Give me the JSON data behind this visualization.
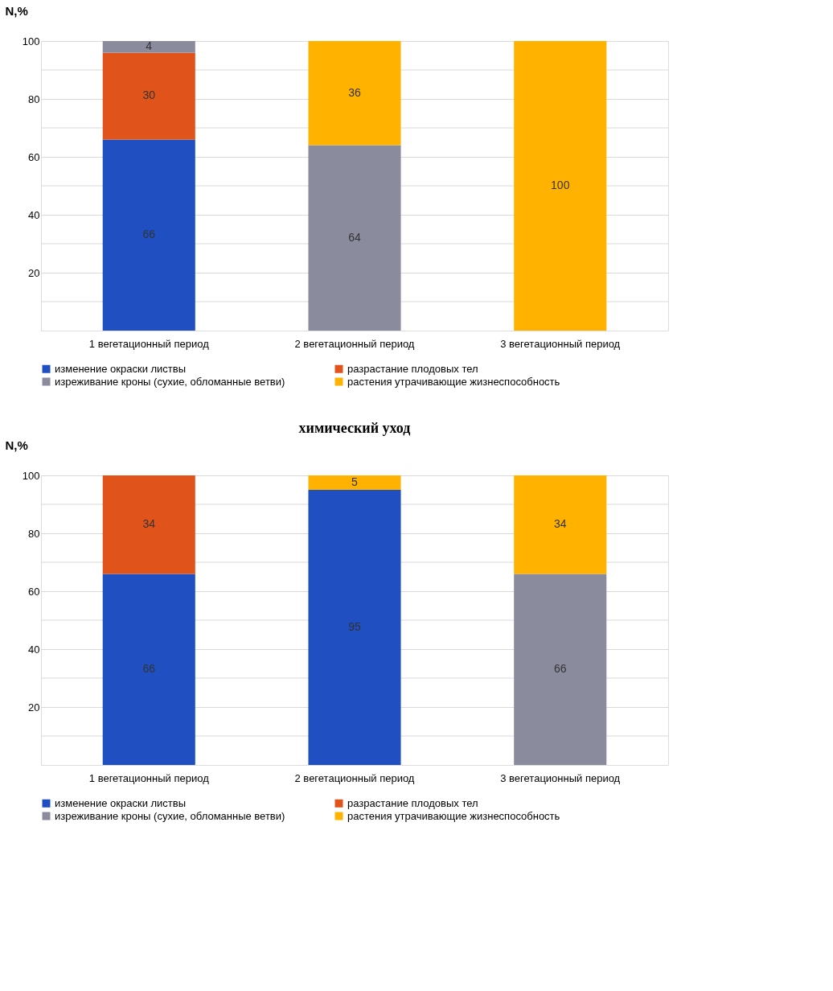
{
  "chart_data": [
    {
      "type": "bar",
      "stacked": true,
      "ylabel": "N,%",
      "categories": [
        "1 вегетационный период",
        "2 вегетационный период",
        "3 вегетационный период"
      ],
      "series": [
        {
          "name": "изменение окраски листвы",
          "color": "#1f4fc1",
          "values": [
            66,
            null,
            null
          ]
        },
        {
          "name": "разрастание плодовых тел",
          "color": "#e0531b",
          "values": [
            30,
            null,
            null
          ]
        },
        {
          "name": "изреживание кроны (сухие, обломанные ветви)",
          "color": "#8b8b9e",
          "values": [
            4,
            64,
            null
          ]
        },
        {
          "name": "растения утрачивающие жизнеспособность",
          "color": "#ffb300",
          "values": [
            null,
            36,
            100
          ]
        }
      ],
      "ylim": [
        0,
        100
      ],
      "yticks": [
        {
          "value": 10,
          "label": null
        },
        20,
        {
          "value": 30,
          "label": null
        },
        40,
        {
          "value": 50,
          "label": null
        },
        60,
        {
          "value": 70,
          "label": null
        },
        80,
        {
          "value": 90,
          "label": null
        },
        100
      ],
      "grid": "y",
      "legend": "bottom",
      "data_labels": true
    },
    {
      "type": "bar",
      "stacked": true,
      "title": "химический уход",
      "ylabel": "N,%",
      "categories": [
        "1 вегетационный период",
        "2 вегетационный период",
        "3 вегетационный период"
      ],
      "series": [
        {
          "name": "изменение окраски листвы",
          "color": "#1f4fc1",
          "values": [
            66,
            95,
            null
          ]
        },
        {
          "name": "разрастание плодовых тел",
          "color": "#e0531b",
          "values": [
            34,
            null,
            null
          ]
        },
        {
          "name": "изреживание кроны (сухие, обломанные ветви)",
          "color": "#8b8b9e",
          "values": [
            null,
            null,
            66
          ]
        },
        {
          "name": "растения утрачивающие жизнеспособность",
          "color": "#ffb300",
          "values": [
            null,
            5,
            34
          ]
        }
      ],
      "ylim": [
        0,
        100
      ],
      "yticks": [
        {
          "value": 10,
          "label": null
        },
        20,
        {
          "value": 30,
          "label": null
        },
        40,
        {
          "value": 50,
          "label": null
        },
        60,
        {
          "value": 70,
          "label": null
        },
        80,
        {
          "value": 90,
          "label": null
        },
        100
      ],
      "grid": "y",
      "legend": "bottom",
      "data_labels": true
    }
  ]
}
